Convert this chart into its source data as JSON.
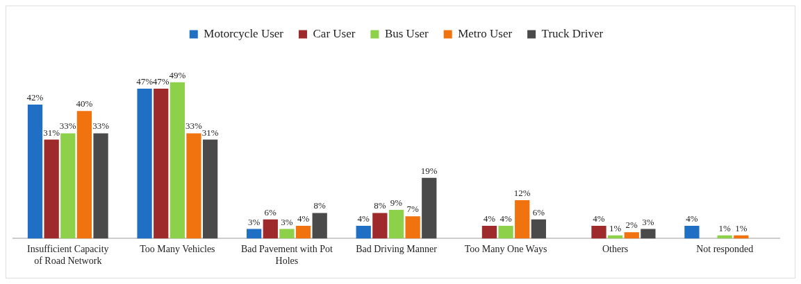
{
  "chart_data": {
    "type": "bar",
    "categories": [
      "Insufficient Capacity of Road Network",
      "Too Many Vehicles",
      "Bad Pavement with Pot Holes",
      "Bad Driving Manner",
      "Too Many One Ways",
      "Others",
      "Not responded"
    ],
    "legend": "top",
    "grid": false,
    "series": [
      {
        "name": "Motorcycle User",
        "color": "#1f6fc5",
        "values": [
          42,
          47,
          3,
          4,
          null,
          null,
          4
        ],
        "value_labels": [
          "42%",
          "47%",
          "3%",
          "4%",
          null,
          null,
          "4%"
        ]
      },
      {
        "name": "Car User",
        "color": "#9e2a2b",
        "values": [
          31,
          47,
          6,
          8,
          4,
          4,
          null
        ],
        "value_labels": [
          "31%",
          "47%",
          "6%",
          "8%",
          "4%",
          "4%",
          null
        ]
      },
      {
        "name": "Bus User",
        "color": "#8dd14b",
        "values": [
          33,
          49,
          3,
          9,
          4,
          1,
          1
        ],
        "value_labels": [
          "33%",
          "49%",
          "3%",
          "9%",
          "4%",
          "1%",
          "1%"
        ]
      },
      {
        "name": "Metro User",
        "color": "#f0730f",
        "values": [
          40,
          33,
          4,
          7,
          12,
          2,
          1
        ],
        "value_labels": [
          "40%",
          "33%",
          "4%",
          "7%",
          "12%",
          "2%",
          "1%"
        ]
      },
      {
        "name": "Truck Driver",
        "color": "#4a4a4a",
        "values": [
          33,
          31,
          8,
          19,
          6,
          3,
          null
        ],
        "value_labels": [
          "33%",
          "31%",
          "8%",
          "19%",
          "6%",
          "3%",
          null
        ]
      }
    ]
  }
}
